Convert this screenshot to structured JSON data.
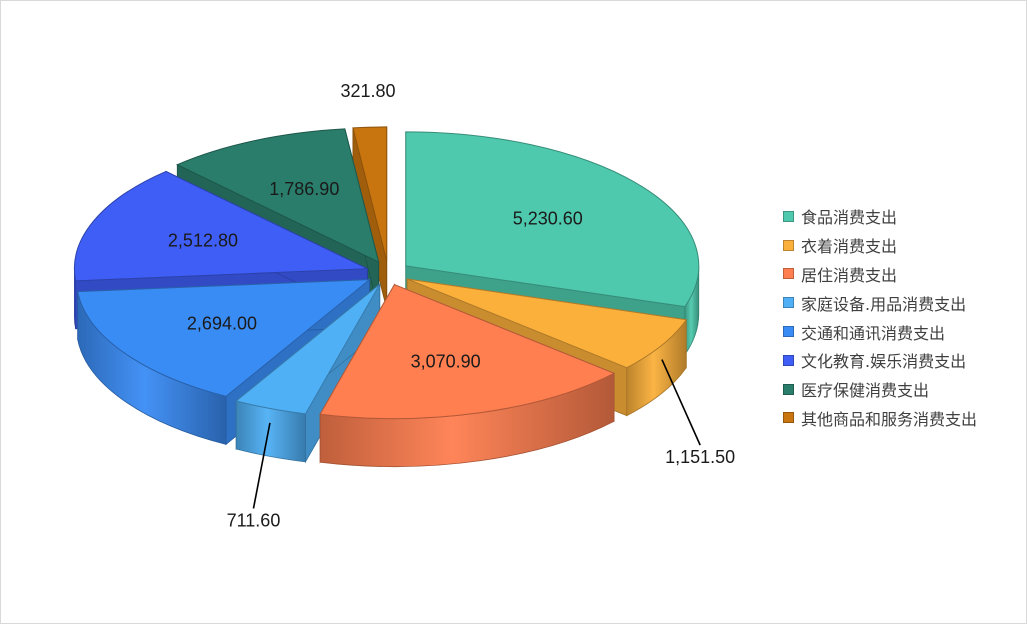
{
  "chart_data": {
    "type": "pie",
    "title": "",
    "categories": [
      "食品消费支出",
      "衣着消费支出",
      "居住消费支出",
      "家庭设备.用品消费支出",
      "交通和通讯消费支出",
      "文化教育.娱乐消费支出",
      "医疗保健消费支出",
      "其他商品和服务消费支出"
    ],
    "values": [
      5230.6,
      1151.5,
      3070.9,
      711.6,
      2694.0,
      2512.8,
      1786.9,
      321.8
    ],
    "value_labels": [
      "5,230.60",
      "1,151.50",
      "3,070.90",
      "711.60",
      "2,694.00",
      "2,512.80",
      "1,786.90",
      "321.80"
    ],
    "colors": [
      "#4ec9ad",
      "#fbb03b",
      "#ff7f50",
      "#4fb0f5",
      "#3a8cf5",
      "#3f5ef5",
      "#2a7d6b",
      "#c87510"
    ],
    "exploded": true,
    "three_d": true,
    "legend_position": "right"
  }
}
